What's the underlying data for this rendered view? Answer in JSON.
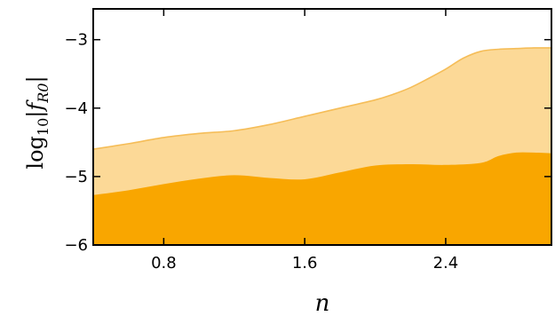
{
  "chart_data": {
    "type": "area",
    "xlabel": "n",
    "ylabel": {
      "base": "log",
      "subscript": "10",
      "bar_left": "|",
      "f": "f",
      "f_subscript": "R0",
      "bar_right": "|"
    },
    "xlim": [
      0.4,
      3.0
    ],
    "ylim": [
      -6,
      -2.55
    ],
    "xticks": [
      0.8,
      1.6,
      2.4
    ],
    "xtick_labels": [
      "0.8",
      "1.6",
      "2.4"
    ],
    "yticks": [
      -3,
      -4,
      -5,
      -6
    ],
    "ytick_labels": [
      "−3",
      "−4",
      "−5",
      "−6"
    ],
    "grid": false,
    "series": [
      {
        "color": "#fcd997",
        "edge_color": "#f5bd58",
        "x": [
          0.4,
          0.6,
          0.8,
          1.0,
          1.2,
          1.4,
          1.6,
          1.8,
          2.0,
          2.1,
          2.2,
          2.3,
          2.4,
          2.5,
          2.6,
          2.7,
          2.8,
          2.9,
          3.0
        ],
        "y": [
          -4.6,
          -4.52,
          -4.43,
          -4.37,
          -4.33,
          -4.24,
          -4.12,
          -4.0,
          -3.88,
          -3.8,
          -3.7,
          -3.57,
          -3.43,
          -3.27,
          -3.17,
          -3.14,
          -3.13,
          -3.12,
          -3.12
        ]
      },
      {
        "color": "#f9a600",
        "x": [
          0.4,
          0.6,
          0.8,
          1.0,
          1.2,
          1.4,
          1.6,
          1.8,
          2.0,
          2.2,
          2.4,
          2.6,
          2.7,
          2.8,
          2.9,
          3.0
        ],
        "y": [
          -5.27,
          -5.2,
          -5.11,
          -5.03,
          -4.98,
          -5.02,
          -5.04,
          -4.94,
          -4.84,
          -4.82,
          -4.83,
          -4.8,
          -4.7,
          -4.65,
          -4.65,
          -4.66
        ]
      }
    ]
  }
}
